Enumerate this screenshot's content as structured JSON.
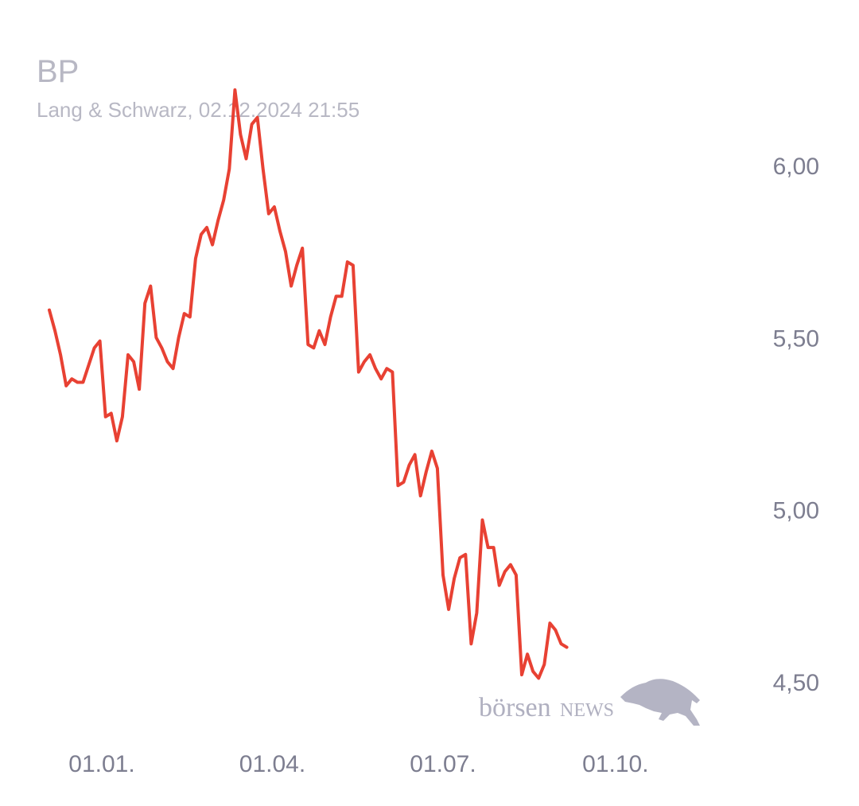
{
  "header": {
    "title": "BP",
    "subtitle": "Lang & Schwarz, 02.12.2024 21:55"
  },
  "watermark": {
    "text_main": "börsen",
    "text_news": "NEWS"
  },
  "colors": {
    "line": "#e84133",
    "axis_text": "#7d7e90",
    "title": "#b8b8c4",
    "watermark": "#b0b0c0"
  },
  "chart_data": {
    "type": "line",
    "title": "BP",
    "subtitle": "Lang & Schwarz, 02.12.2024 21:55",
    "xlabel": "",
    "ylabel": "",
    "grid": false,
    "y_axis_position": "right",
    "ylim": [
      4.4,
      6.25
    ],
    "xlim": [
      "2023-12-04",
      "2024-12-02"
    ],
    "y_ticks": [
      {
        "value": 6.0,
        "label": "6,00"
      },
      {
        "value": 5.5,
        "label": "5,50"
      },
      {
        "value": 5.0,
        "label": "5,00"
      },
      {
        "value": 4.5,
        "label": "4,50"
      }
    ],
    "x_ticks": [
      {
        "value": "2024-01-01",
        "label": "01.01."
      },
      {
        "value": "2024-04-01",
        "label": "01.04."
      },
      {
        "value": "2024-07-01",
        "label": "01.07."
      },
      {
        "value": "2024-10-01",
        "label": "01.10."
      }
    ],
    "series": [
      {
        "color": "#e84133",
        "points": [
          [
            "2023-12-04",
            5.58
          ],
          [
            "2023-12-07",
            5.52
          ],
          [
            "2023-12-10",
            5.45
          ],
          [
            "2023-12-13",
            5.36
          ],
          [
            "2023-12-16",
            5.38
          ],
          [
            "2023-12-19",
            5.37
          ],
          [
            "2023-12-22",
            5.37
          ],
          [
            "2023-12-25",
            5.42
          ],
          [
            "2023-12-28",
            5.47
          ],
          [
            "2023-12-31",
            5.49
          ],
          [
            "2024-01-03",
            5.27
          ],
          [
            "2024-01-06",
            5.28
          ],
          [
            "2024-01-09",
            5.2
          ],
          [
            "2024-01-12",
            5.27
          ],
          [
            "2024-01-15",
            5.45
          ],
          [
            "2024-01-18",
            5.43
          ],
          [
            "2024-01-21",
            5.35
          ],
          [
            "2024-01-24",
            5.6
          ],
          [
            "2024-01-27",
            5.65
          ],
          [
            "2024-01-30",
            5.5
          ],
          [
            "2024-02-02",
            5.47
          ],
          [
            "2024-02-05",
            5.43
          ],
          [
            "2024-02-08",
            5.41
          ],
          [
            "2024-02-11",
            5.5
          ],
          [
            "2024-02-14",
            5.57
          ],
          [
            "2024-02-17",
            5.56
          ],
          [
            "2024-02-20",
            5.73
          ],
          [
            "2024-02-23",
            5.8
          ],
          [
            "2024-02-26",
            5.82
          ],
          [
            "2024-02-29",
            5.77
          ],
          [
            "2024-03-03",
            5.84
          ],
          [
            "2024-03-06",
            5.9
          ],
          [
            "2024-03-09",
            5.99
          ],
          [
            "2024-03-12",
            6.22
          ],
          [
            "2024-03-15",
            6.09
          ],
          [
            "2024-03-18",
            6.02
          ],
          [
            "2024-03-21",
            6.12
          ],
          [
            "2024-03-24",
            6.14
          ],
          [
            "2024-03-27",
            5.99
          ],
          [
            "2024-03-30",
            5.86
          ],
          [
            "2024-04-02",
            5.88
          ],
          [
            "2024-04-05",
            5.81
          ],
          [
            "2024-04-08",
            5.75
          ],
          [
            "2024-04-11",
            5.65
          ],
          [
            "2024-04-14",
            5.71
          ],
          [
            "2024-04-17",
            5.76
          ],
          [
            "2024-04-20",
            5.48
          ],
          [
            "2024-04-23",
            5.47
          ],
          [
            "2024-04-26",
            5.52
          ],
          [
            "2024-04-29",
            5.48
          ],
          [
            "2024-05-02",
            5.56
          ],
          [
            "2024-05-05",
            5.62
          ],
          [
            "2024-05-08",
            5.62
          ],
          [
            "2024-05-11",
            5.72
          ],
          [
            "2024-05-14",
            5.71
          ],
          [
            "2024-05-17",
            5.4
          ],
          [
            "2024-05-20",
            5.43
          ],
          [
            "2024-05-23",
            5.45
          ],
          [
            "2024-05-26",
            5.41
          ],
          [
            "2024-05-29",
            5.38
          ],
          [
            "2024-06-01",
            5.41
          ],
          [
            "2024-06-04",
            5.4
          ],
          [
            "2024-06-07",
            5.07
          ],
          [
            "2024-06-10",
            5.08
          ],
          [
            "2024-06-13",
            5.13
          ],
          [
            "2024-06-16",
            5.16
          ],
          [
            "2024-06-19",
            5.04
          ],
          [
            "2024-06-22",
            5.11
          ],
          [
            "2024-06-25",
            5.17
          ],
          [
            "2024-06-28",
            5.12
          ],
          [
            "2024-07-01",
            4.81
          ],
          [
            "2024-07-04",
            4.71
          ],
          [
            "2024-07-07",
            4.8
          ],
          [
            "2024-07-10",
            4.86
          ],
          [
            "2024-07-13",
            4.87
          ],
          [
            "2024-07-16",
            4.61
          ],
          [
            "2024-07-19",
            4.7
          ],
          [
            "2024-07-22",
            4.97
          ],
          [
            "2024-07-25",
            4.89
          ],
          [
            "2024-07-28",
            4.89
          ],
          [
            "2024-07-31",
            4.78
          ],
          [
            "2024-08-03",
            4.82
          ],
          [
            "2024-08-06",
            4.84
          ],
          [
            "2024-08-09",
            4.81
          ],
          [
            "2024-08-12",
            4.52
          ],
          [
            "2024-08-15",
            4.58
          ],
          [
            "2024-08-18",
            4.53
          ],
          [
            "2024-08-21",
            4.51
          ],
          [
            "2024-08-24",
            4.55
          ],
          [
            "2024-08-27",
            4.67
          ],
          [
            "2024-08-30",
            4.65
          ],
          [
            "2024-09-02",
            4.61
          ],
          [
            "2024-09-05",
            4.6
          ]
        ]
      }
    ]
  }
}
